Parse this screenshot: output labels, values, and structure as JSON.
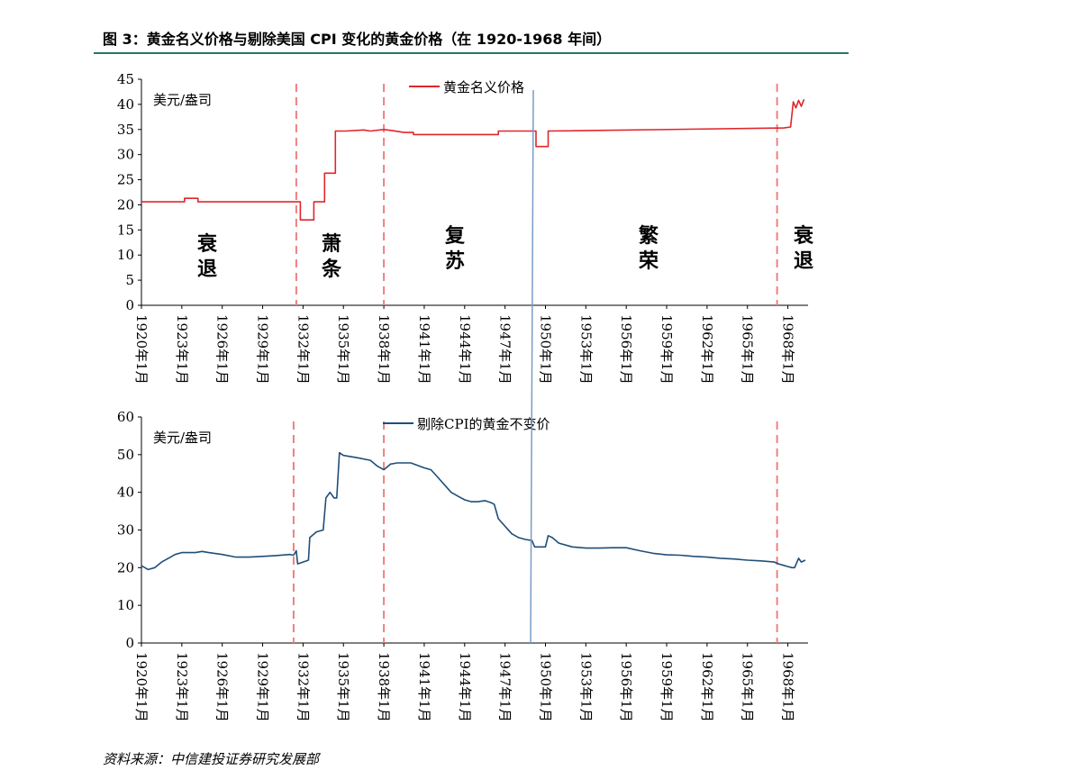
{
  "figure_title": "图 3：黄金名义价格与剔除美国 CPI 变化的黄金价格（在 1920-1968 年间）",
  "source": "资料来源：中信建投证券研究发展部",
  "colors": {
    "nominal": "#e0262b",
    "real": "#1f4e79",
    "period_line": "#f08080",
    "marker_1949": "#7a9cc6",
    "title_rule": "#1f7a6a"
  },
  "chart_data": [
    {
      "type": "line",
      "ylabel": "美元/盎司",
      "ylim": [
        0,
        45
      ],
      "yticks": [
        0,
        5,
        10,
        15,
        20,
        25,
        30,
        35,
        40,
        45
      ],
      "xlim": [
        1920,
        1969.5
      ],
      "xticks": [
        "1920年1月",
        "1923年1月",
        "1926年1月",
        "1929年1月",
        "1932年1月",
        "1935年1月",
        "1938年1月",
        "1941年1月",
        "1944年1月",
        "1947年1月",
        "1950年1月",
        "1953年1月",
        "1956年1月",
        "1959年1月",
        "1962年1月",
        "1965年1月",
        "1968年1月"
      ],
      "legend": "top-center",
      "series": [
        {
          "name": "黄金名义价格",
          "x": [
            1920,
            1923.2,
            1923.2,
            1924.2,
            1924.2,
            1931.8,
            1931.8,
            1932.8,
            1932.8,
            1933.6,
            1933.6,
            1934.4,
            1934.4,
            1935.2,
            1936.5,
            1937,
            1938,
            1938.6,
            1939.5,
            1940.2,
            1940.2,
            1946.5,
            1946.5,
            1949.3,
            1949.3,
            1950.2,
            1950.2,
            1967.7,
            1968.2,
            1968.4,
            1968.6,
            1968.8,
            1969,
            1969.2
          ],
          "y": [
            20.6,
            20.6,
            21.3,
            21.3,
            20.6,
            20.6,
            17,
            17,
            20.6,
            20.6,
            26.3,
            26.3,
            34.7,
            34.7,
            34.9,
            34.7,
            35,
            34.8,
            34.4,
            34.4,
            34,
            34,
            34.7,
            34.7,
            31.6,
            31.6,
            34.7,
            35.3,
            35.5,
            40.5,
            39.3,
            40.8,
            39.6,
            41
          ]
        }
      ],
      "period_lines": [
        1931.5,
        1938,
        1967.2
      ],
      "marker_line": 1949.1,
      "annotations": [
        "衰\n退",
        "萧\n条",
        "复\n苏",
        "繁\n荣",
        "衰\n退"
      ]
    },
    {
      "type": "line",
      "ylabel": "美元/盎司",
      "ylim": [
        0,
        60
      ],
      "yticks": [
        0,
        10,
        20,
        30,
        40,
        50,
        60
      ],
      "xlim": [
        1920,
        1969.5
      ],
      "xticks": [
        "1920年1月",
        "1923年1月",
        "1926年1月",
        "1929年1月",
        "1932年1月",
        "1935年1月",
        "1938年1月",
        "1941年1月",
        "1944年1月",
        "1947年1月",
        "1950年1月",
        "1953年1月",
        "1956年1月",
        "1959年1月",
        "1962年1月",
        "1965年1月",
        "1968年1月"
      ],
      "legend": "top-center",
      "series": [
        {
          "name": "剔除CPI的黄金不变价",
          "x": [
            1920,
            1920.5,
            1921,
            1921.5,
            1922,
            1922.5,
            1923,
            1923.5,
            1924,
            1924.5,
            1925,
            1926,
            1927,
            1928,
            1929,
            1930,
            1931,
            1931.3,
            1931.5,
            1931.6,
            1932,
            1932.4,
            1932.5,
            1933,
            1933.5,
            1933.7,
            1934,
            1934.3,
            1934.5,
            1934.7,
            1935,
            1935.5,
            1936,
            1937,
            1937.5,
            1938,
            1938.5,
            1939,
            1940,
            1941,
            1941.5,
            1942,
            1942.5,
            1943,
            1943.5,
            1944,
            1944.5,
            1945,
            1945.5,
            1946,
            1946.2,
            1946.5,
            1947,
            1947.5,
            1948,
            1948.5,
            1949,
            1949.2,
            1949.5,
            1950,
            1950.2,
            1950.5,
            1951,
            1952,
            1953,
            1954,
            1955,
            1956,
            1957,
            1958,
            1959,
            1960,
            1961,
            1962,
            1963,
            1964,
            1965,
            1966,
            1967,
            1967.3,
            1967.7,
            1968,
            1968.3,
            1968.5,
            1968.8,
            1969,
            1969.3
          ],
          "y": [
            20.5,
            19.5,
            20,
            21.5,
            22.5,
            23.5,
            24,
            24,
            24,
            24.3,
            24,
            23.5,
            22.8,
            22.8,
            23,
            23.2,
            23.5,
            23.3,
            24.5,
            21,
            21.5,
            22,
            28,
            29.5,
            30,
            38.5,
            40,
            38.5,
            38.5,
            50.5,
            49.8,
            49.5,
            49.2,
            48.5,
            47,
            46,
            47.5,
            47.8,
            47.8,
            46.5,
            46,
            44,
            42,
            40,
            39,
            38,
            37.5,
            37.5,
            37.8,
            37.2,
            36.8,
            33,
            31,
            29,
            28,
            27.5,
            27.2,
            25.5,
            25.5,
            25.5,
            28.5,
            28,
            26.5,
            25.5,
            25.2,
            25.2,
            25.3,
            25.3,
            24.5,
            23.8,
            23.4,
            23.3,
            23,
            22.8,
            22.5,
            22.3,
            22,
            21.8,
            21.5,
            21,
            20.6,
            20.3,
            20,
            20,
            22.5,
            21.5,
            22
          ]
        }
      ],
      "period_lines": [
        1931.3,
        1938,
        1967.2
      ],
      "marker_line": 1949
    }
  ]
}
